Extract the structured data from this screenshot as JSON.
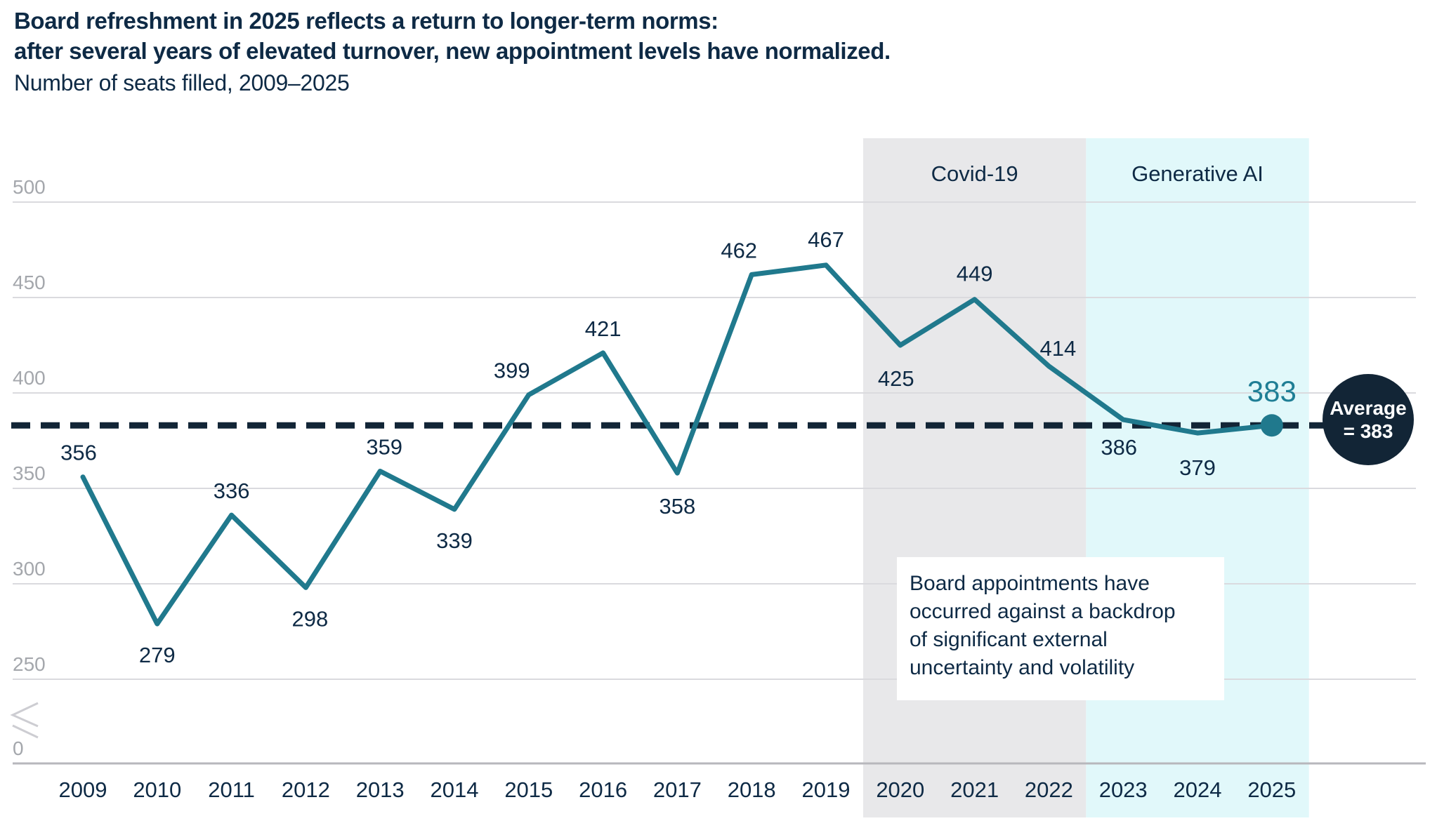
{
  "page": {
    "title_line1": "Board refreshment in 2025 reflects a return to longer-term norms:",
    "title_line2": "after several years of elevated turnover, new appointment levels have normalized.",
    "subtitle": "Number of seats filled, 2009–2025"
  },
  "chart_data": {
    "type": "line",
    "title": "Board refreshment in 2025 reflects a return to longer-term norms: after several years of elevated turnover, new appointment levels have normalized.",
    "subtitle": "Number of seats filled, 2009–2025",
    "x": [
      2009,
      2010,
      2011,
      2012,
      2013,
      2014,
      2015,
      2016,
      2017,
      2018,
      2019,
      2020,
      2021,
      2022,
      2023,
      2024,
      2025
    ],
    "series": [
      {
        "name": "Number of seats filled",
        "values": [
          356,
          279,
          336,
          298,
          359,
          339,
          399,
          421,
          358,
          462,
          467,
          425,
          449,
          414,
          386,
          379,
          383
        ]
      }
    ],
    "ylim": [
      0,
      500
    ],
    "yticks": [
      500,
      450,
      400,
      350,
      300,
      250,
      0
    ],
    "y_axis_break": true,
    "grid": "horizontal",
    "legend": "none",
    "average_line": {
      "value": 383,
      "style": "dashed",
      "badge_label": "Average\n= 383"
    },
    "highlight": {
      "year": 2025,
      "value": 383
    },
    "regions": [
      {
        "label": "Covid-19",
        "from": 2020,
        "to": 2022
      },
      {
        "label": "Generative AI",
        "from": 2023,
        "to": 2025
      }
    ],
    "annotation": "Board appointments have\noccurred against a backdrop\nof significant external\nuncertainty and volatility"
  },
  "colors": {
    "navy_text": "#0e2a45",
    "dark_navy": "#122536",
    "teal_line": "#20798d",
    "teal_highlight": "#1f7e95",
    "gridline": "#dadade",
    "axis_line": "#b7b7bc",
    "ytick_label": "#a4a7ac",
    "band_covid": "#e8e8ea",
    "band_genai": "#e1f8fa",
    "annotation_bg": "#ffffff",
    "badge_text": "#ffffff"
  }
}
